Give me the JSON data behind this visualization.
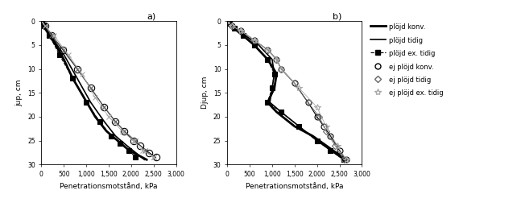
{
  "title_a": "a)",
  "title_b": "b)",
  "ylabel_a": "jup, cm",
  "ylabel_b": "Djup, cm",
  "xlabel": "Penetrationsmotstånd, kPa",
  "xlim": [
    0,
    3000
  ],
  "xticks": [
    0,
    500,
    1000,
    1500,
    2000,
    2500,
    3000
  ],
  "xtick_labels_a": [
    "0",
    "500",
    "1,000",
    "1,500",
    "2,000",
    "2,500",
    "3,000"
  ],
  "xtick_labels_b": [
    "0",
    "500",
    "1,000",
    "1,500",
    "2,000",
    "2,500",
    "3,000"
  ],
  "plot_a": {
    "ylim_min": 0,
    "ylim_max": 30,
    "yticks": [
      0,
      5,
      10,
      15,
      20,
      25,
      30
    ],
    "series": [
      {
        "label": "plöjd konv.",
        "marker": null,
        "color": "#000000",
        "linewidth": 2.0,
        "linestyle": "-",
        "x": [
          0,
          30,
          80,
          180,
          320,
          500,
          700,
          950,
          1200,
          1450,
          1700,
          1950,
          2150,
          2350
        ],
        "y": [
          0,
          0.5,
          1.5,
          3,
          5,
          8,
          12,
          16,
          20,
          23,
          25,
          27,
          28,
          29
        ]
      },
      {
        "label": "plöjd tidig",
        "marker": null,
        "color": "#000000",
        "linewidth": 1.2,
        "linestyle": "-",
        "x": [
          0,
          40,
          120,
          280,
          500,
          800,
          1100,
          1400,
          1650,
          1900,
          2100,
          2300
        ],
        "y": [
          0,
          0.5,
          2,
          4,
          7,
          12,
          17,
          21,
          24,
          26,
          27.5,
          29
        ]
      },
      {
        "label": "plöjd ex. tidig",
        "marker": "s",
        "marker_filled": true,
        "color": "#000000",
        "linewidth": 0.8,
        "linestyle": "--",
        "markersize": 4,
        "x": [
          0,
          60,
          180,
          400,
          700,
          1000,
          1300,
          1550,
          1750,
          1950,
          2100
        ],
        "y": [
          0,
          1,
          3,
          7,
          12,
          17,
          21,
          24,
          25.5,
          27,
          28.5
        ]
      },
      {
        "label": "ej plöjd konv.",
        "marker": "o",
        "marker_filled": false,
        "color": "#000000",
        "linewidth": 0.8,
        "linestyle": "-",
        "markersize": 6,
        "x": [
          0,
          80,
          230,
          480,
          800,
          1100,
          1400,
          1650,
          1850,
          2050,
          2200,
          2400,
          2550
        ],
        "y": [
          0,
          1,
          3,
          6,
          10,
          14,
          18,
          21,
          23,
          25,
          26,
          27.5,
          28.5
        ]
      },
      {
        "label": "ej plöjd tidig",
        "marker": "x",
        "marker_filled": false,
        "color": "#666666",
        "linewidth": 0.6,
        "linestyle": "-",
        "markersize": 5,
        "x": [
          0,
          80,
          230,
          500,
          800,
          1100,
          1400,
          1650,
          1850,
          2100,
          2300,
          2500
        ],
        "y": [
          0,
          1,
          3,
          6,
          10,
          14,
          18,
          21,
          23,
          25,
          27,
          28.5
        ]
      },
      {
        "label": "ej plöjd ex. tidig",
        "marker": "x",
        "marker_filled": false,
        "color": "#aaaaaa",
        "linewidth": 0.6,
        "linestyle": "-",
        "markersize": 5,
        "x": [
          0,
          80,
          280,
          600,
          900,
          1200,
          1500,
          1800,
          2050,
          2250,
          2500
        ],
        "y": [
          0,
          1,
          3,
          7,
          11,
          16,
          20,
          23,
          25,
          27,
          28.5
        ]
      }
    ]
  },
  "plot_b": {
    "ylim_min": 0,
    "ylim_max": 30,
    "yticks": [
      0,
      5,
      10,
      15,
      20,
      25,
      30
    ],
    "series": [
      {
        "label": "plöjd konv.",
        "marker": null,
        "color": "#000000",
        "linewidth": 2.0,
        "linestyle": "-",
        "x": [
          0,
          50,
          150,
          350,
          600,
          900,
          1100,
          1050,
          900,
          1100,
          1500,
          1900,
          2200,
          2500,
          2650
        ],
        "y": [
          0,
          0.5,
          1.5,
          3,
          5,
          8,
          11,
          14,
          17,
          19,
          22,
          24,
          26,
          28,
          29
        ]
      },
      {
        "label": "plöjd tidig",
        "marker": null,
        "color": "#000000",
        "linewidth": 1.2,
        "linestyle": "-",
        "x": [
          0,
          60,
          180,
          400,
          700,
          1000,
          1050,
          1000,
          950,
          1200,
          1600,
          2000,
          2300,
          2600
        ],
        "y": [
          0,
          0.5,
          1.5,
          3,
          5,
          8,
          11,
          14,
          17,
          19,
          22,
          25,
          27,
          29
        ]
      },
      {
        "label": "plöjd ex. tidig",
        "marker": "s",
        "marker_filled": true,
        "color": "#000000",
        "linewidth": 0.8,
        "linestyle": "--",
        "markersize": 4,
        "x": [
          0,
          50,
          150,
          350,
          600,
          900,
          1050,
          1000,
          900,
          1200,
          1600,
          2000,
          2300,
          2600
        ],
        "y": [
          0,
          0.5,
          1.5,
          3,
          5,
          8,
          11,
          14,
          17,
          19,
          22,
          25,
          27,
          29
        ]
      },
      {
        "label": "ej plöjd konv.",
        "marker": "o",
        "marker_filled": false,
        "color": "#000000",
        "linewidth": 0.8,
        "linestyle": "-",
        "markersize": 5,
        "x": [
          0,
          100,
          300,
          600,
          900,
          1100,
          1200,
          1500,
          1800,
          2000,
          2150,
          2300,
          2500,
          2650
        ],
        "y": [
          0,
          1,
          2,
          4,
          6,
          8,
          10,
          13,
          17,
          20,
          22,
          24,
          27,
          29
        ]
      },
      {
        "label": "ej plöjd tidig",
        "marker": "D",
        "marker_filled": false,
        "color": "#666666",
        "linewidth": 0.6,
        "linestyle": "-",
        "markersize": 4,
        "x": [
          0,
          100,
          300,
          600,
          900,
          1100,
          1200,
          1500,
          1800,
          2050,
          2200,
          2400,
          2600
        ],
        "y": [
          0,
          1,
          2,
          4,
          6,
          8,
          10,
          13,
          17,
          20,
          23,
          26,
          29
        ]
      },
      {
        "label": "ej plöjd ex. tidig",
        "marker": "*",
        "marker_filled": false,
        "color": "#aaaaaa",
        "linewidth": 0.6,
        "linestyle": "-",
        "markersize": 6,
        "x": [
          0,
          100,
          300,
          600,
          900,
          1100,
          1200,
          1600,
          2000,
          2200,
          2450,
          2650
        ],
        "y": [
          0,
          1,
          2,
          4,
          6,
          8,
          10,
          14,
          18,
          22,
          26,
          29
        ]
      }
    ]
  },
  "legend_markers": [
    {
      "label": "plöjd konv.",
      "line": true,
      "marker": null,
      "filled": true,
      "color": "#000000",
      "lw": 2.0,
      "ms": 0,
      "ls": "-"
    },
    {
      "label": "plöjd tidig",
      "line": true,
      "marker": null,
      "filled": true,
      "color": "#000000",
      "lw": 1.2,
      "ms": 0,
      "ls": "-"
    },
    {
      "label": "plöjd ex. tidig",
      "line": true,
      "marker": "s",
      "filled": true,
      "color": "#000000",
      "lw": 0.8,
      "ms": 4,
      "ls": "--"
    },
    {
      "label": "ej plöjd konv.",
      "line": false,
      "marker": "o",
      "filled": false,
      "color": "#000000",
      "lw": 0.8,
      "ms": 5,
      "ls": "-"
    },
    {
      "label": "ej plöjd tidig",
      "line": false,
      "marker": "D",
      "filled": false,
      "color": "#666666",
      "lw": 0.6,
      "ms": 4,
      "ls": "-"
    },
    {
      "label": "ej plöjd ex. tidig",
      "line": false,
      "marker": "*",
      "filled": false,
      "color": "#aaaaaa",
      "lw": 0.6,
      "ms": 6,
      "ls": "-"
    }
  ]
}
